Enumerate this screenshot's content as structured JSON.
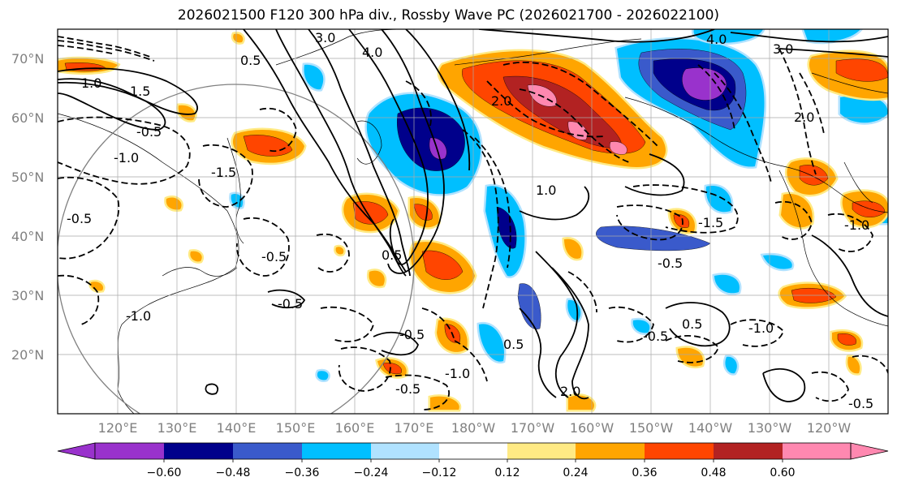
{
  "title": "2026021500 F120 300 hPa div., Rossby Wave PC (2026021700 - 2026022100)",
  "lat_labels": [
    "70°N",
    "60°N",
    "50°N",
    "40°N",
    "30°N",
    "20°N"
  ],
  "lon_labels": [
    "120°E",
    "130°E",
    "140°E",
    "150°E",
    "160°E",
    "170°E",
    "180°W",
    "170°W",
    "160°W",
    "150°W",
    "140°W",
    "130°W",
    "120°W"
  ],
  "contour_labels": [
    "3.0",
    "2.0",
    "4.0",
    "0.5",
    "1.0",
    "1.5",
    "-0.5",
    "-1.0",
    "-1.5",
    "-0.5",
    "-1.0",
    "-0.5",
    "-0.5",
    "-1.0",
    "0.5",
    "-0.5",
    "2.0",
    "-0.5",
    "1.0",
    "-1.5",
    "0.5",
    "-0.5",
    "-0.5",
    "-1.0",
    "3.0",
    "4.0",
    "2.0",
    "-0.5",
    "0.5",
    "-1.0"
  ],
  "colorbar": {
    "ticks": [
      "−0.60",
      "−0.48",
      "−0.36",
      "−0.24",
      "−0.12",
      "0.12",
      "0.24",
      "0.36",
      "0.48",
      "0.60"
    ],
    "colors": [
      "#9932cc",
      "#00008b",
      "#3a5acb",
      "#00bfff",
      "#b0e2ff",
      "#ffffff",
      "#ffea84",
      "#ffa500",
      "#ff4500",
      "#b22222",
      "#ff88b0"
    ],
    "low_extend_color": "#9932cc",
    "high_extend_color": "#ff88b0"
  },
  "shading_colors": {
    "strong_neg": "#9932cc",
    "neg_48": "#00008b",
    "neg_36": "#3a5acb",
    "neg_24": "#00bfff",
    "neg_12": "#b0e2ff",
    "pos_12": "#ffea84",
    "pos_24": "#ffa500",
    "pos_36": "#ff4500",
    "pos_48": "#b22222",
    "strong_pos": "#ff88b0"
  }
}
